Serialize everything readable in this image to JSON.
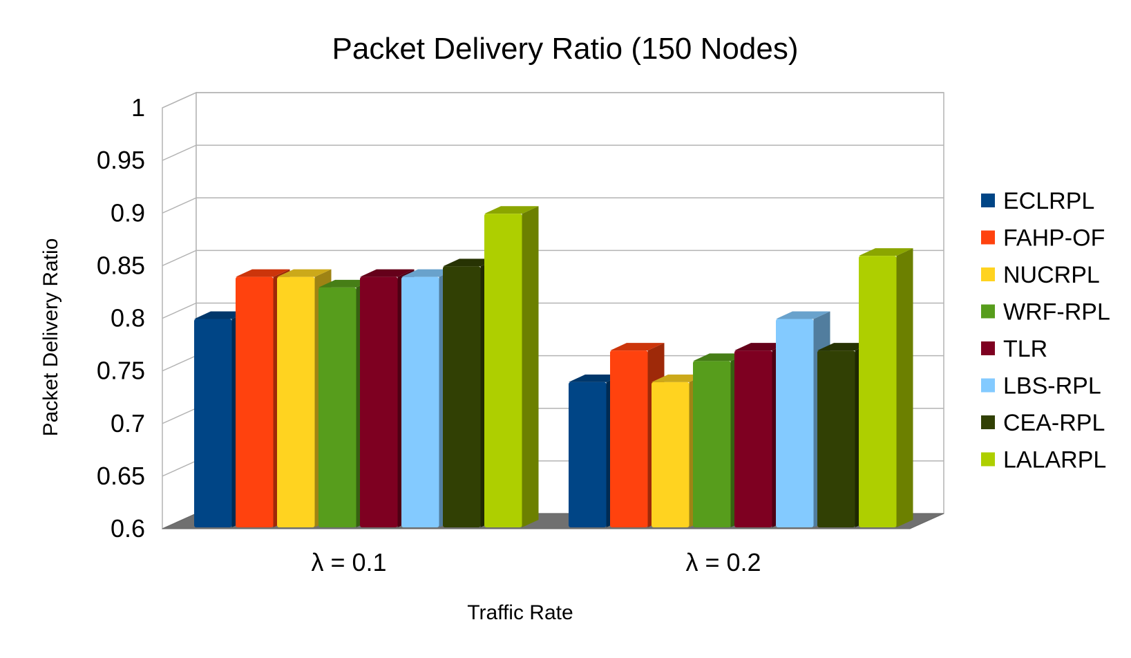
{
  "chart_data": {
    "type": "bar",
    "title": "Packet Delivery Ratio (150 Nodes)",
    "xlabel": "Traffic Rate",
    "ylabel": "Packet Delivery Ratio",
    "categories": [
      "λ = 0.1",
      "λ = 0.2"
    ],
    "ylim": [
      0.6,
      1
    ],
    "yticks": [
      "0.6",
      "0.65",
      "0.7",
      "0.75",
      "0.8",
      "0.85",
      "0.9",
      "0.95",
      "1"
    ],
    "grid": true,
    "legend_position": "right",
    "style": "3d",
    "series": [
      {
        "name": "ECLRPL",
        "color": "#004586",
        "values": [
          0.8,
          0.74
        ]
      },
      {
        "name": "FAHP-OF",
        "color": "#ff420e",
        "values": [
          0.84,
          0.77
        ]
      },
      {
        "name": "NUCRPL",
        "color": "#ffd320",
        "values": [
          0.84,
          0.74
        ]
      },
      {
        "name": "WRF-RPL",
        "color": "#579d1c",
        "values": [
          0.83,
          0.76
        ]
      },
      {
        "name": "TLR",
        "color": "#7e0021",
        "values": [
          0.84,
          0.77
        ]
      },
      {
        "name": "LBS-RPL",
        "color": "#83caff",
        "values": [
          0.84,
          0.8
        ]
      },
      {
        "name": "CEA-RPL",
        "color": "#314004",
        "values": [
          0.85,
          0.77
        ]
      },
      {
        "name": "LALARPL",
        "color": "#aecf00",
        "values": [
          0.9,
          0.86
        ]
      }
    ]
  }
}
